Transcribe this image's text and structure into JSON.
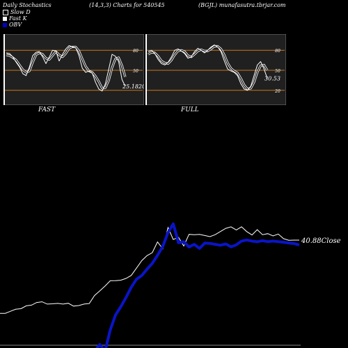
{
  "header": {
    "left": "Daily Stochastics",
    "mid": "(14,3,3) Charts for 540545",
    "right": "(BGJL) munafasutra.tbrjar.com"
  },
  "legend": [
    {
      "label": "Slow  D",
      "color": "#000000"
    },
    {
      "label": "Fast K",
      "color": "#ffffff"
    },
    {
      "label": "OBV",
      "color": "#0000cc"
    }
  ],
  "colors": {
    "background": "#000000",
    "panel": "#202020",
    "level_line": "#c8781e",
    "obv": "#0a14c8",
    "price": "#ffffff"
  },
  "chart_data": [
    {
      "type": "line",
      "name": "FAST",
      "levels": [
        80,
        50,
        20
      ],
      "level_labels": [
        "80",
        "50"
      ],
      "ylim": [
        0,
        100
      ],
      "last_value_label": "25.1820",
      "series": [
        {
          "name": "Fast K",
          "values": [
            76,
            75,
            70,
            62,
            55,
            45,
            42,
            55,
            72,
            77,
            78,
            70,
            60,
            70,
            80,
            79,
            64,
            74,
            82,
            87,
            85,
            84,
            72,
            53,
            47,
            49,
            46,
            32,
            22,
            19,
            30,
            52,
            74,
            71,
            63,
            36,
            26
          ]
        },
        {
          "name": "Slow  D",
          "values": [
            73,
            72,
            69,
            65,
            58,
            51,
            47,
            49,
            62,
            73,
            76,
            74,
            68,
            66,
            72,
            78,
            73,
            70,
            75,
            83,
            85,
            85,
            79,
            67,
            56,
            49,
            47,
            41,
            33,
            23,
            24,
            35,
            54,
            67,
            69,
            57,
            40
          ]
        }
      ]
    },
    {
      "type": "line",
      "name": "FULL",
      "levels": [
        80,
        50,
        20
      ],
      "level_labels": [
        "80",
        "50",
        "20"
      ],
      "ylim": [
        0,
        100
      ],
      "last_value_label": "30.53",
      "series": [
        {
          "name": "Fast K",
          "values": [
            78,
            80,
            75,
            66,
            60,
            58,
            62,
            70,
            80,
            82,
            79,
            75,
            68,
            70,
            78,
            83,
            80,
            76,
            80,
            85,
            88,
            85,
            78,
            64,
            52,
            49,
            47,
            42,
            30,
            22,
            20,
            26,
            42,
            58,
            63,
            52,
            38
          ]
        },
        {
          "name": "Slow  D",
          "values": [
            74,
            77,
            76,
            71,
            64,
            61,
            60,
            65,
            73,
            79,
            80,
            78,
            72,
            70,
            74,
            79,
            81,
            79,
            79,
            82,
            86,
            86,
            82,
            73,
            61,
            53,
            49,
            46,
            38,
            28,
            22,
            23,
            32,
            47,
            57,
            58,
            50
          ]
        }
      ]
    },
    {
      "type": "line",
      "name": "OBV",
      "close_label": "40.88",
      "close_suffix": "Close",
      "series": [
        {
          "name": "Price",
          "values": [
            23.0,
            23.0,
            24.5,
            26.0,
            26.4,
            28.5,
            29.0,
            31.0,
            31.5,
            29.8,
            30.0,
            30.3,
            29.8,
            30.4,
            28.3,
            28.7,
            29.8,
            30.2,
            36.1,
            39.5,
            43.1,
            47.0,
            47.1,
            47.4,
            48.7,
            50.9,
            56.3,
            61.8,
            65.5,
            67.7,
            75.6,
            70.5,
            86.2,
            77.4,
            79.0,
            72.6,
            81.2,
            80.9,
            81.2,
            80.3,
            79.5,
            81.0,
            83.3,
            85.6,
            86.7,
            84.4,
            86.7,
            83.2,
            80.7,
            84.6,
            80.9,
            81.7,
            80.0,
            81.4,
            78.0,
            76.8,
            76.9,
            76.9
          ]
        },
        {
          "name": "OBV",
          "values": [
            -5.0,
            -5.0,
            -5.0,
            -5.0,
            -5.0,
            -5.0,
            -5.0,
            -5.0,
            -5.0,
            -5.0,
            -5.0,
            -5.0,
            -5.0,
            -5.0,
            -5.0,
            -5.0,
            -5.0,
            -5.0,
            -5.0,
            0.0,
            -5.0,
            10.7,
            21.8,
            27.8,
            34.7,
            42.2,
            48.1,
            50.8,
            55.5,
            59.8,
            65.7,
            72.3,
            82.5,
            88.9,
            75.0,
            75.7,
            71.9,
            73.8,
            70.8,
            74.7,
            74.5,
            73.8,
            73.2,
            74.1,
            72.0,
            73.5,
            76.2,
            77.0,
            76.2,
            75.7,
            76.5,
            75.8,
            76.2,
            75.8,
            75.4,
            74.8,
            74.4,
            73.4
          ]
        }
      ]
    }
  ],
  "labels": {
    "fast": "FAST",
    "full": "FULL"
  }
}
